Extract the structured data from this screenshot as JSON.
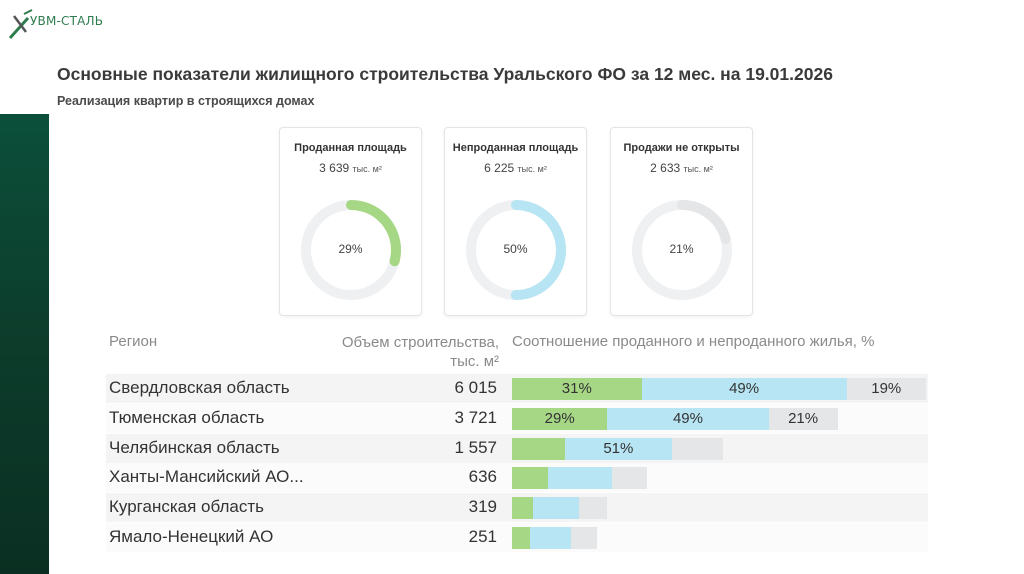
{
  "logo": {
    "text": "УВМ-СТАЛЬ"
  },
  "header": {
    "title": "Основные показатели жилищного строительства Уральского ФО за 12 мес. на 19.01.2026",
    "subtitle": "Реализация квартир в строящихся домах"
  },
  "colors": {
    "sold": "#a6d785",
    "unsold": "#b8e5f4",
    "not_opened": "#e4e6e8",
    "track": "#eef0f2",
    "band": "#0b4f3a"
  },
  "cards": [
    {
      "label": "Проданная площадь",
      "value": "3 639",
      "unit": "тыс. м²",
      "pct_label": "29%",
      "pct": 29,
      "color": "#a6d785"
    },
    {
      "label": "Непроданная площадь",
      "value": "6 225",
      "unit": "тыс. м²",
      "pct_label": "50%",
      "pct": 50,
      "color": "#b8e5f4"
    },
    {
      "label": "Продажи не открыты",
      "value": "2 633",
      "unit": "тыс. м²",
      "pct_label": "21%",
      "pct": 21,
      "color": "#e4e6e8"
    }
  ],
  "table": {
    "col_region": "Регион",
    "col_volume_1": "Объем строительства,",
    "col_volume_2": "тыс. м²",
    "col_ratio": "Соотношение проданного и непроданного жилья, %"
  },
  "chart_data": {
    "type": "bar",
    "stacked": true,
    "orientation": "horizontal",
    "title": "Соотношение проданного и непроданного жилья, %",
    "categories": [
      "Свердловская область",
      "Тюменская область",
      "Челябинская область",
      "Ханты-Мансийский АО...",
      "Курганская область",
      "Ямало-Ненецкий АО"
    ],
    "volume": [
      "6 015",
      "3 721",
      "1 557",
      "636",
      "319",
      "251"
    ],
    "volume_values": [
      6015,
      3721,
      1557,
      636,
      319,
      251
    ],
    "series": [
      {
        "name": "Продано",
        "values": [
          31,
          29,
          25,
          27,
          22,
          21
        ],
        "labels": [
          "31%",
          "29%",
          "",
          "",
          "",
          ""
        ]
      },
      {
        "name": "Не продано",
        "values": [
          49,
          49,
          51,
          47,
          48,
          49
        ],
        "labels": [
          "49%",
          "49%",
          "51%",
          "",
          "",
          ""
        ]
      },
      {
        "name": "Продажи не открыты",
        "values": [
          19,
          21,
          24,
          26,
          30,
          30
        ],
        "labels": [
          "19%",
          "21%",
          "",
          "",
          "",
          ""
        ]
      }
    ]
  }
}
